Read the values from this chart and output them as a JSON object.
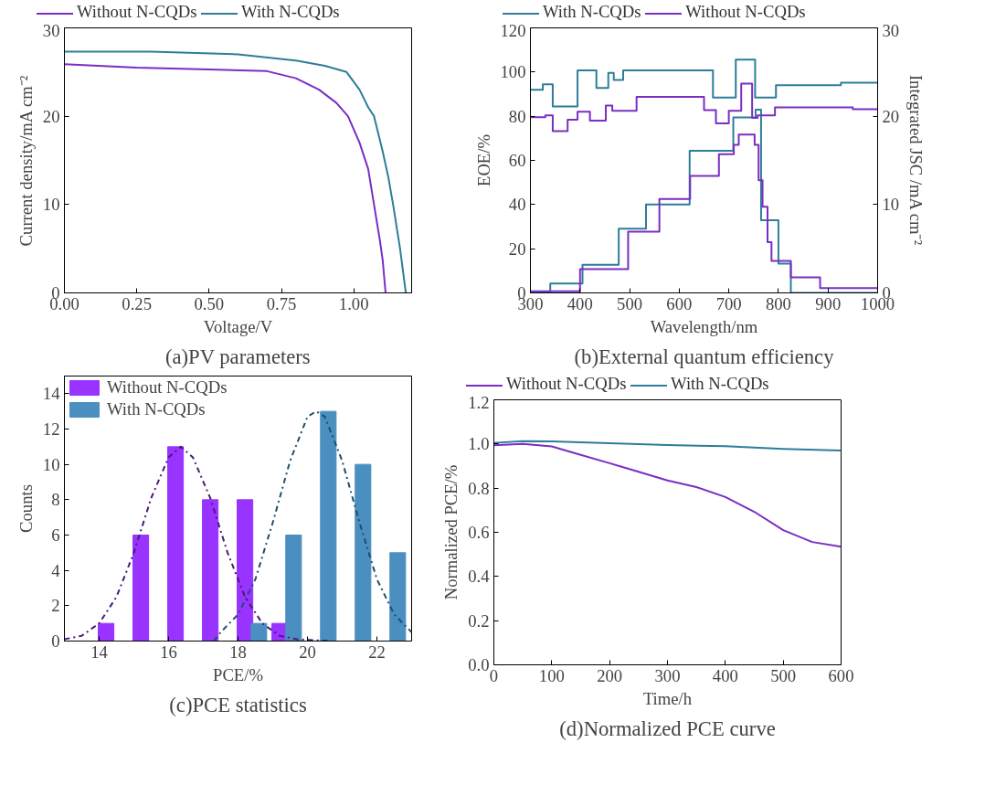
{
  "chart_data": [
    {
      "type": "line",
      "title": "(a)PV parameters",
      "xlabel": "Voltage/V",
      "ylabel": "Current density/mA cm⁻²",
      "xlim": [
        0,
        1.2
      ],
      "ylim": [
        0,
        30
      ],
      "xticks": [
        {
          "value": 0,
          "label": "0.00"
        },
        0.25,
        {
          "value": 0.5,
          "label": "0.50"
        },
        0.75,
        {
          "value": 1,
          "label": "1.00"
        }
      ],
      "yticks": [
        0,
        10,
        20,
        30
      ],
      "grid": false,
      "legend": "top",
      "series": [
        {
          "name": "Without N-CQDs",
          "color": "#7a2ec4",
          "x": [
            0,
            0.25,
            0.5,
            0.7,
            0.8,
            0.88,
            0.94,
            0.98,
            1.02,
            1.05,
            1.07,
            1.09,
            1.1,
            1.11
          ],
          "values": [
            25.9,
            25.5,
            25.3,
            25.1,
            24.3,
            23,
            21.5,
            20,
            17,
            14,
            10,
            6,
            3.7,
            0
          ]
        },
        {
          "name": "With N-CQDs",
          "color": "#2e7d99",
          "x": [
            0,
            0.3,
            0.6,
            0.8,
            0.9,
            0.975,
            1.02,
            1.05,
            1.07,
            1.1,
            1.12,
            1.136,
            1.16,
            1.18
          ],
          "values": [
            27.3,
            27.3,
            27,
            26.3,
            25.7,
            25,
            23,
            21,
            20,
            16,
            13,
            10,
            5,
            0
          ]
        }
      ]
    },
    {
      "type": "step",
      "title": "(b)External quantum efficiency",
      "xlabel": "Wavelength/nm",
      "ylabel": "EOE/%",
      "y2label": "Integrated JSC /mA cm⁻²",
      "xlim": [
        300,
        1000
      ],
      "ylim": [
        0,
        120
      ],
      "y2lim": [
        0,
        30
      ],
      "xticks": [
        300,
        400,
        500,
        600,
        700,
        800,
        900,
        1000
      ],
      "yticks": [
        0,
        20,
        40,
        60,
        80,
        100,
        120
      ],
      "y2ticks": [
        0,
        10,
        20,
        30
      ],
      "grid": false,
      "legend": "top",
      "series": [
        {
          "name": "With N-CQDs",
          "color": "#2e7d99",
          "x": [
            300,
            340,
            405,
            478,
            533,
            621,
            709,
            754,
            765,
            800,
            825,
            1000
          ],
          "values": [
            0.5,
            4.2,
            12.7,
            29.1,
            40,
            64.3,
            79.5,
            83,
            32.9,
            13.2,
            0,
            0
          ]
        },
        {
          "name": "Without N-CQDs",
          "color": "#7a2ec4",
          "x": [
            300,
            400,
            497,
            560,
            622,
            680,
            710,
            720,
            752,
            760,
            768,
            778,
            786,
            825,
            884,
            1000
          ],
          "values": [
            0.7,
            10.8,
            27.7,
            42.5,
            53,
            62.8,
            67,
            71.7,
            67,
            51,
            39,
            23,
            14.5,
            7,
            2.2,
            2.2
          ]
        },
        {
          "color": "#2e7d99",
          "axis": "y2",
          "x": [
            300,
            325,
            345,
            395,
            433,
            457,
            468,
            487,
            668,
            714,
            753,
            795,
            926,
            1000
          ],
          "values": [
            23,
            23.6,
            21.1,
            25.2,
            23.2,
            24.9,
            24.1,
            25.2,
            22.1,
            26.4,
            22.1,
            23.5,
            23.8,
            23.8
          ]
        },
        {
          "color": "#7a2ec4",
          "axis": "y2",
          "x": [
            300,
            330,
            345,
            375,
            395,
            420,
            452,
            465,
            514,
            650,
            674,
            700,
            725,
            747,
            758,
            793,
            950,
            1000
          ],
          "values": [
            19.9,
            20.1,
            18.3,
            19.6,
            20.5,
            19.5,
            21.2,
            20.6,
            22.2,
            20.7,
            19.2,
            20.6,
            23.7,
            19.8,
            20.1,
            21,
            20.8,
            20.8
          ]
        }
      ]
    },
    {
      "type": "bar",
      "title": "(c)PCE statistics",
      "xlabel": "PCE/%",
      "ylabel": "Counts",
      "xlim": [
        13,
        23
      ],
      "ylim": [
        0,
        15
      ],
      "xticks": [
        14,
        16,
        18,
        20,
        22
      ],
      "yticks": [
        0,
        2,
        4,
        6,
        8,
        10,
        12,
        14
      ],
      "grid": false,
      "legend": "top left",
      "series": [
        {
          "name": "Without N-CQDs",
          "color": "#9933ff",
          "x": [
            14.2,
            15.2,
            16.2,
            17.2,
            18.2,
            19.2
          ],
          "values": [
            1,
            6,
            11,
            8,
            8,
            1
          ]
        },
        {
          "name": "With N-CQDs",
          "color": "#4a8fc0",
          "x": [
            18.6,
            19.6,
            20.6,
            21.6,
            22.6
          ],
          "values": [
            1,
            6,
            13,
            10,
            5
          ]
        },
        {
          "type": "line",
          "line_style": "dashdot",
          "color": "#4b1a7a",
          "x": [
            13,
            13.5,
            14,
            14.5,
            15,
            15.5,
            16,
            16.35,
            16.7,
            17.2,
            17.7,
            18.2,
            18.7,
            19.2,
            19.7,
            20.7
          ],
          "values": [
            0.1,
            0.3,
            1,
            2.5,
            5,
            8.1,
            10.4,
            11,
            10.4,
            8.1,
            5,
            2.5,
            1,
            0.3,
            0.1,
            0
          ]
        },
        {
          "type": "line",
          "line_style": "dashdot",
          "color": "#1f4e6a",
          "x": [
            17.3,
            17.5,
            18,
            18.5,
            19,
            19.5,
            20,
            20.25,
            20.5,
            21,
            21.5,
            22,
            22.5,
            23
          ],
          "values": [
            0,
            0.5,
            1.5,
            3.5,
            6.7,
            10.2,
            12.7,
            13,
            12.7,
            10.2,
            6.7,
            3.5,
            1.5,
            0.5
          ]
        }
      ]
    },
    {
      "type": "line",
      "title": "(d)Normalized PCE curve",
      "xlabel": "Time/h",
      "ylabel": "Normalized PCE/%",
      "xlim": [
        0,
        600
      ],
      "ylim": [
        0,
        1.2
      ],
      "xticks": [
        0,
        100,
        200,
        300,
        400,
        500,
        600
      ],
      "yticks": [
        {
          "value": 0,
          "label": "0.0"
        },
        0.2,
        0.4,
        0.6,
        0.8,
        {
          "value": 1,
          "label": "1.0"
        },
        1.2
      ],
      "grid": false,
      "legend": "top",
      "series": [
        {
          "name": "Without N-CQDs",
          "color": "#7a2ec4",
          "x": [
            0,
            50,
            100,
            150,
            200,
            250,
            300,
            350,
            400,
            450,
            500,
            550,
            600
          ],
          "values": [
            0.994,
            1,
            0.989,
            0.951,
            0.913,
            0.874,
            0.835,
            0.805,
            0.76,
            0.693,
            0.61,
            0.556,
            0.535
          ]
        },
        {
          "name": "With N-CQDs",
          "color": "#2e7d99",
          "x": [
            0,
            50,
            100,
            200,
            300,
            400,
            500,
            600
          ],
          "values": [
            1.005,
            1.013,
            1.012,
            1.003,
            0.995,
            0.99,
            0.978,
            0.97
          ]
        }
      ]
    }
  ]
}
